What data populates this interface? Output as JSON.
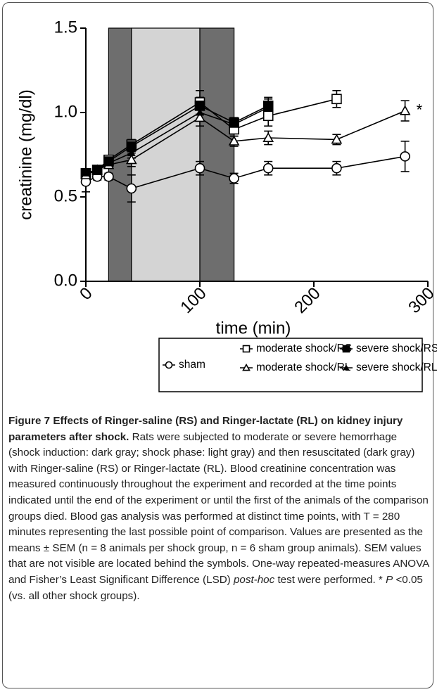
{
  "chart_data": {
    "type": "line",
    "xlabel": "time (min)",
    "ylabel": "creatinine (mg/dl)",
    "x": [
      0,
      10,
      20,
      40,
      100,
      130,
      160,
      220,
      280
    ],
    "xlim": [
      0,
      300
    ],
    "xticks": [
      0,
      100,
      200,
      300
    ],
    "ylim": [
      0,
      1.5
    ],
    "yticks": [
      {
        "value": 0,
        "label": "0.0"
      },
      0.5,
      {
        "value": 1,
        "label": "1.0"
      },
      1.5
    ],
    "shaded_regions": [
      {
        "from": 20,
        "to": 40,
        "color": "#6e6e6e"
      },
      {
        "from": 40,
        "to": 100,
        "color": "#d4d4d4"
      },
      {
        "from": 100,
        "to": 130,
        "color": "#6e6e6e"
      }
    ],
    "series": [
      {
        "name": "sham",
        "color": "#000000",
        "marker": "circle",
        "values": [
          0.59,
          0.62,
          0.62,
          0.55,
          0.67,
          0.61,
          0.67,
          0.67,
          0.74
        ],
        "errors": [
          0.06,
          0.02,
          0.02,
          0.08,
          0.04,
          0.03,
          0.04,
          0.04,
          0.09
        ]
      },
      {
        "name": "moderate shock/RS",
        "color": "#000000",
        "marker": "square-open",
        "values": [
          0.64,
          0.66,
          0.72,
          0.81,
          1.06,
          0.9,
          0.98,
          1.08,
          null
        ],
        "errors": [
          0.02,
          0.02,
          0.02,
          0.03,
          0.07,
          0.04,
          0.06,
          0.05,
          null
        ]
      },
      {
        "name": "severe shock/RS",
        "color": "#000000",
        "marker": "square-filled",
        "values": [
          0.64,
          0.66,
          0.71,
          0.8,
          1.04,
          0.94,
          1.04,
          null,
          null
        ],
        "errors": [
          0.02,
          0.02,
          0.02,
          0.03,
          0.05,
          0.03,
          0.05,
          null,
          null
        ]
      },
      {
        "name": "moderate shock/RL",
        "color": "#000000",
        "marker": "triangle-open",
        "values": [
          0.63,
          0.66,
          0.69,
          0.72,
          0.97,
          0.83,
          0.85,
          0.84,
          1.01
        ],
        "errors": [
          0.02,
          0.02,
          0.02,
          0.04,
          0.05,
          0.03,
          0.04,
          0.03,
          0.06
        ]
      },
      {
        "name": "severe shock/RL",
        "color": "#000000",
        "marker": "triangle-filled",
        "values": [
          0.64,
          0.66,
          0.7,
          0.76,
          1.0,
          0.93,
          1.03,
          null,
          null
        ],
        "errors": [
          0.02,
          0.02,
          0.02,
          0.03,
          0.05,
          0.03,
          0.05,
          null,
          null
        ]
      }
    ],
    "annotations": [
      {
        "text": "*",
        "x": 280,
        "y": 1.01
      }
    ]
  },
  "caption": {
    "label": "Figure 7",
    "title": "Effects of Ringer-saline (RS) and Ringer-lactate (RL) on kidney injury parameters after shock.",
    "segments": [
      "Rats were subjected to moderate or severe hemorrhage (shock induction: dark gray; shock phase: light gray) and then resuscitated (dark gray) with Ringer-saline (RS) or Ringer-lactate (RL). Blood creatinine concentration was measured continuously throughout the experiment and recorded at the time points indicated until the end of the experiment or until the first of the animals of the comparison groups died. Blood gas analysis was performed at distinct time points, with T = 280 minutes representing the last possible point of comparison. Values are presented as the means ± SEM (n = 8 animals per shock group, n = 6 sham group animals). SEM values that are not visible are located behind the symbols. One-way repeated-measures ANOVA and Fisher’s Least Significant Difference (LSD) ",
      "post-hoc",
      " test were performed. * ",
      "P",
      " <0.05 (vs. all other shock groups)."
    ]
  }
}
